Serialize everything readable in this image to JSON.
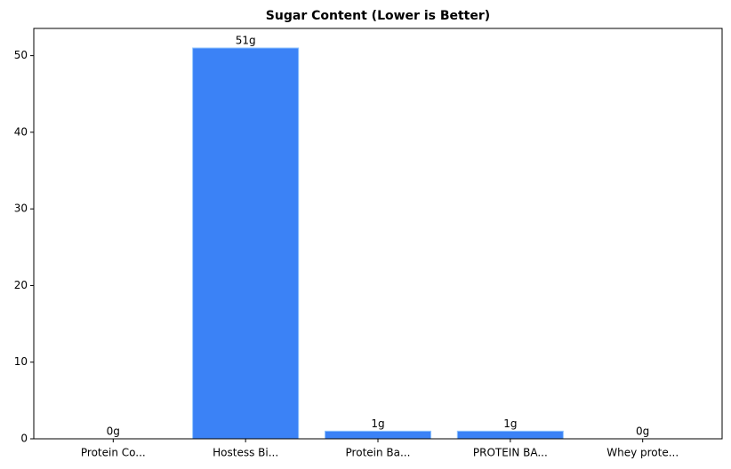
{
  "chart_data": {
    "type": "bar",
    "title": "Sugar Content (Lower is Better)",
    "categories": [
      "Protein Co...",
      "Hostess Bi...",
      "Protein Ba...",
      "PROTEIN BA...",
      "Whey prote..."
    ],
    "values": [
      0,
      51,
      1,
      1,
      0
    ],
    "value_labels": [
      "0g",
      "51g",
      "1g",
      "1g",
      "0g"
    ],
    "color": "#3b82f6",
    "ylim": [
      0,
      53.55
    ],
    "yticks": [
      0,
      10,
      20,
      30,
      40,
      50
    ],
    "grid": false
  }
}
